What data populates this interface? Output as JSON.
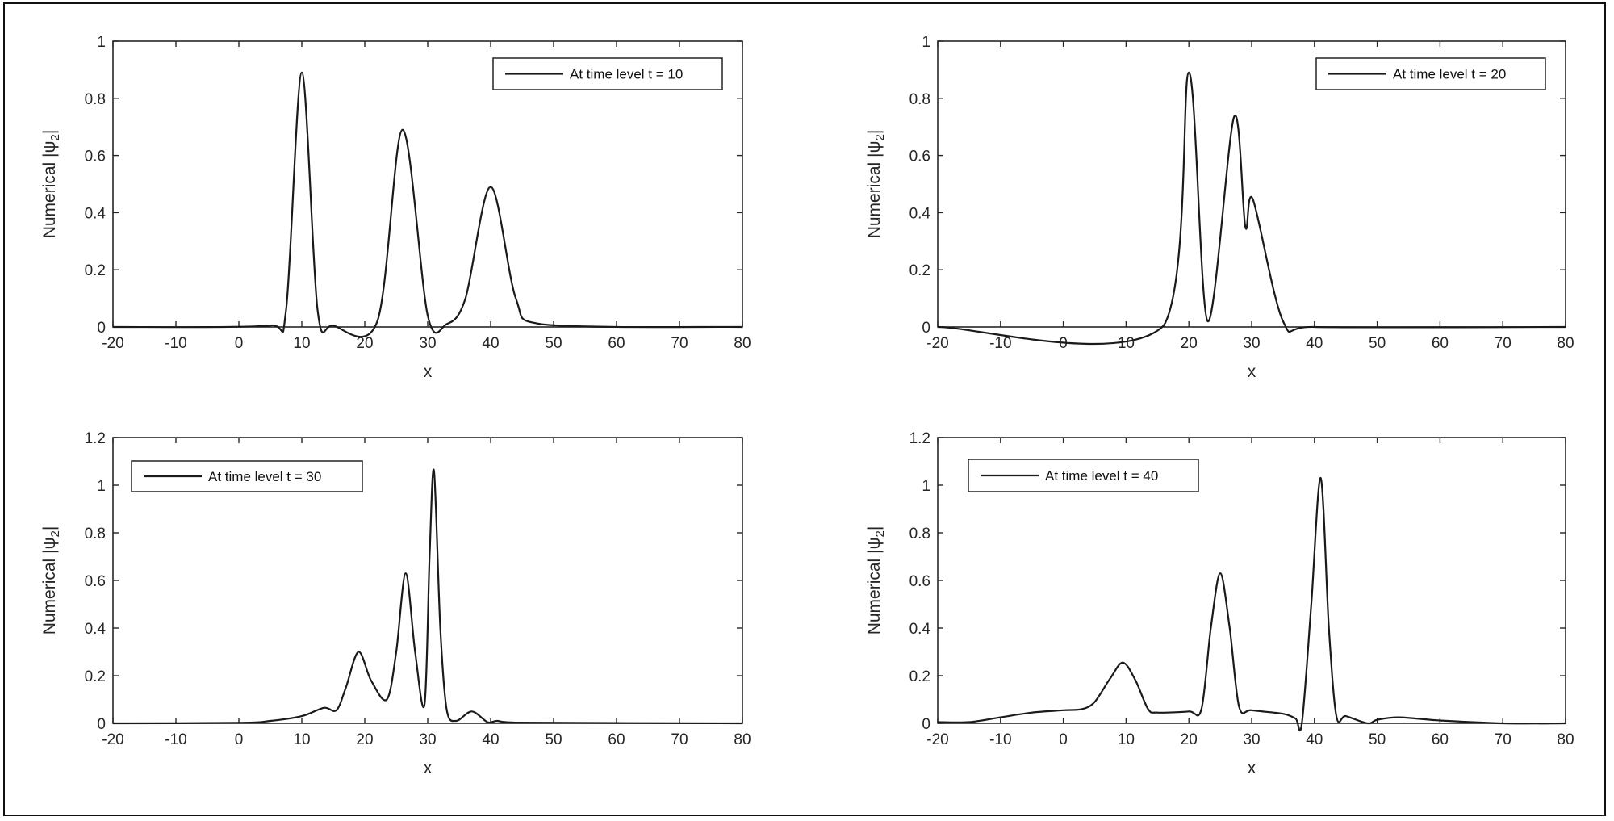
{
  "figure": {
    "frame_color": "#111111",
    "line_color": "#1a1a1a"
  },
  "chart_data": [
    {
      "type": "line",
      "panel": "top-left",
      "title": "",
      "xlabel": "x",
      "ylabel": "Numerical |ψ₂|",
      "xlim": [
        -20,
        80
      ],
      "ylim": [
        0,
        1
      ],
      "xticks": [
        -20,
        -10,
        0,
        10,
        20,
        30,
        40,
        50,
        60,
        70,
        80
      ],
      "yticks": [
        0,
        0.2,
        0.4,
        0.6,
        0.8,
        1
      ],
      "ytick_labels": [
        "0",
        "0.2",
        "0.4",
        "0.6",
        "0.8",
        "1"
      ],
      "grid": false,
      "legend": {
        "position": "upper-right",
        "entries": [
          "At time level t = 10"
        ]
      },
      "series": [
        {
          "name": "At time level t = 10",
          "peaks": [
            {
              "x": 10,
              "amp": 0.89,
              "width": 1.05
            },
            {
              "x": 26,
              "amp": 0.69,
              "width": 1.25
            },
            {
              "x": 40,
              "amp": 0.49,
              "width": 1.75
            }
          ],
          "points": [
            [
              -20,
              0
            ],
            [
              5,
              0.005
            ],
            [
              7.5,
              0.06
            ],
            [
              10,
              0.89
            ],
            [
              12.5,
              0.06
            ],
            [
              15,
              0.005
            ],
            [
              22,
              0.02
            ],
            [
              26,
              0.69
            ],
            [
              30,
              0.04
            ],
            [
              33,
              0.01
            ],
            [
              36,
              0.1
            ],
            [
              40,
              0.49
            ],
            [
              44,
              0.1
            ],
            [
              48,
              0.01
            ],
            [
              80,
              0
            ]
          ]
        }
      ]
    },
    {
      "type": "line",
      "panel": "top-right",
      "title": "",
      "xlabel": "x",
      "ylabel": "Numerical |ψ₂|",
      "xlim": [
        -20,
        80
      ],
      "ylim": [
        0,
        1
      ],
      "xticks": [
        -20,
        -10,
        0,
        10,
        20,
        30,
        40,
        50,
        60,
        70,
        80
      ],
      "yticks": [
        0,
        0.2,
        0.4,
        0.6,
        0.8,
        1
      ],
      "ytick_labels": [
        "0",
        "0.2",
        "0.4",
        "0.6",
        "0.8",
        "1"
      ],
      "grid": false,
      "legend": {
        "position": "upper-right",
        "entries": [
          "At time level t = 20"
        ]
      },
      "series": [
        {
          "name": "At time level t = 20",
          "peaks": [
            {
              "x": 20,
              "amp": 0.89,
              "width": 1.0
            },
            {
              "x": 27.2,
              "amp": 0.66,
              "width": 1.15
            },
            {
              "x": 30.3,
              "amp": 0.38,
              "width": 1.35
            }
          ],
          "points": [
            [
              -20,
              0
            ],
            [
              16,
              0.005
            ],
            [
              20,
              0.89
            ],
            [
              23,
              0.02
            ],
            [
              27.2,
              0.735
            ],
            [
              29,
              0.35
            ],
            [
              30.2,
              0.446
            ],
            [
              35,
              0.02
            ],
            [
              40,
              0
            ],
            [
              80,
              0
            ]
          ]
        }
      ]
    },
    {
      "type": "line",
      "panel": "bottom-left",
      "title": "",
      "xlabel": "x",
      "ylabel": "Numerical |ψ₂|",
      "xlim": [
        -20,
        80
      ],
      "ylim": [
        0,
        1.2
      ],
      "xticks": [
        -20,
        -10,
        0,
        10,
        20,
        30,
        40,
        50,
        60,
        70,
        80
      ],
      "yticks": [
        0,
        0.2,
        0.4,
        0.6,
        0.8,
        1,
        1.2
      ],
      "ytick_labels": [
        "0",
        "0.2",
        "0.4",
        "0.6",
        "0.8",
        "1",
        "1.2"
      ],
      "grid": false,
      "legend": {
        "position": "upper-left",
        "entries": [
          "At time level t = 30"
        ]
      },
      "series": [
        {
          "name": "At time level t = 30",
          "points": [
            [
              -20,
              0
            ],
            [
              0,
              0.002
            ],
            [
              5,
              0.01
            ],
            [
              10,
              0.03
            ],
            [
              13.5,
              0.065
            ],
            [
              15.5,
              0.055
            ],
            [
              17,
              0.15
            ],
            [
              19,
              0.3
            ],
            [
              21,
              0.18
            ],
            [
              23.5,
              0.1
            ],
            [
              25,
              0.3
            ],
            [
              26.5,
              0.63
            ],
            [
              28,
              0.3
            ],
            [
              29.5,
              0.08
            ],
            [
              30.3,
              0.7
            ],
            [
              31,
              1.06
            ],
            [
              32,
              0.4
            ],
            [
              33,
              0.06
            ],
            [
              34.5,
              0.01
            ],
            [
              37,
              0.05
            ],
            [
              39.5,
              0.005
            ],
            [
              41,
              0.01
            ],
            [
              44,
              0.003
            ],
            [
              80,
              0
            ]
          ]
        }
      ]
    },
    {
      "type": "line",
      "panel": "bottom-right",
      "title": "",
      "xlabel": "x",
      "ylabel": "Numerical |ψ₂|",
      "xlim": [
        -20,
        80
      ],
      "ylim": [
        0,
        1.2
      ],
      "xticks": [
        -20,
        -10,
        0,
        10,
        20,
        30,
        40,
        50,
        60,
        70,
        80
      ],
      "yticks": [
        0,
        0.2,
        0.4,
        0.6,
        0.8,
        1,
        1.2
      ],
      "ytick_labels": [
        "0",
        "0.2",
        "0.4",
        "0.6",
        "0.8",
        "1",
        "1.2"
      ],
      "grid": false,
      "legend": {
        "position": "upper-left",
        "entries": [
          "At time level t = 40"
        ]
      },
      "series": [
        {
          "name": "At time level t = 40",
          "points": [
            [
              -20,
              0.005
            ],
            [
              -15,
              0.005
            ],
            [
              -10,
              0.025
            ],
            [
              -5,
              0.045
            ],
            [
              0,
              0.055
            ],
            [
              3,
              0.06
            ],
            [
              5,
              0.09
            ],
            [
              7.5,
              0.19
            ],
            [
              9.5,
              0.255
            ],
            [
              11.5,
              0.18
            ],
            [
              13.5,
              0.06
            ],
            [
              15,
              0.045
            ],
            [
              20,
              0.05
            ],
            [
              22,
              0.06
            ],
            [
              23.5,
              0.4
            ],
            [
              25,
              0.63
            ],
            [
              26.5,
              0.4
            ],
            [
              28,
              0.07
            ],
            [
              30,
              0.055
            ],
            [
              35,
              0.04
            ],
            [
              37,
              0.02
            ],
            [
              38,
              0.0
            ],
            [
              39.5,
              0.5
            ],
            [
              41,
              1.03
            ],
            [
              42.3,
              0.4
            ],
            [
              43.5,
              0.03
            ],
            [
              45,
              0.03
            ],
            [
              48.5,
              0.0
            ],
            [
              50,
              0.015
            ],
            [
              53.5,
              0.025
            ],
            [
              60,
              0.012
            ],
            [
              70,
              0.0
            ],
            [
              80,
              0
            ]
          ]
        }
      ]
    }
  ],
  "panels": [
    {
      "legend_label": "At time level t = 10",
      "xlabel": "x",
      "ylabel": "Numerical |ψ₂|"
    },
    {
      "legend_label": "At time level t = 20",
      "xlabel": "x",
      "ylabel": "Numerical |ψ₂|"
    },
    {
      "legend_label": "At time level t = 30",
      "xlabel": "x",
      "ylabel": "Numerical |ψ₂|"
    },
    {
      "legend_label": "At time level t = 40",
      "xlabel": "x",
      "ylabel": "Numerical |ψ₂|"
    }
  ]
}
